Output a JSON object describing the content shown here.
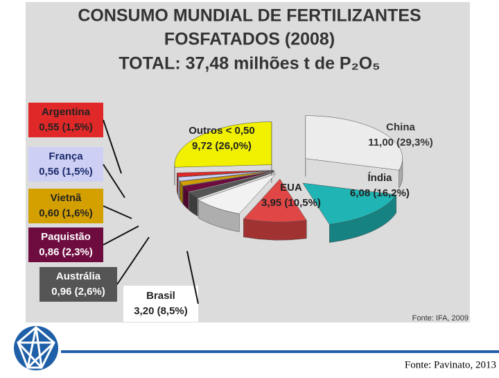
{
  "chart_data": {
    "type": "pie",
    "title": [
      "CONSUMO MUNDIAL DE FERTILIZANTES",
      "FOSFATADOS  (2008)"
    ],
    "subtitle": "TOTAL: 37,48 milhões t de P₂O₅",
    "categories": [
      "China",
      "Índia",
      "EUA",
      "Brasil",
      "Austrália",
      "Paquistão",
      "Vietnã",
      "França",
      "Argentina",
      "Outros < 0,50"
    ],
    "values": [
      11.0,
      6.08,
      3.95,
      3.2,
      0.96,
      0.86,
      0.6,
      0.56,
      0.55,
      9.72
    ],
    "value_labels": [
      "11,00 (29,3%)",
      "6,08 (16,2%)",
      "3,95 (10,5%)",
      "3,20 (8,5%)",
      "0,96 (2,6%)",
      "0,86 (2,3%)",
      "0,60 (1,6%)",
      "0,56 (1,5%)",
      "0,55 (1,5%)",
      "9,72 (26,0%)"
    ],
    "colors": [
      "#ececec",
      "#20b4b4",
      "#e04646",
      "#f2f2f2",
      "#555555",
      "#6e0c40",
      "#d4a000",
      "#cdd0f4",
      "#e02828",
      "#f0f000"
    ],
    "source": "Fonte: IFA, 2009"
  },
  "footer": {
    "source": "Fonte: Pavinato, 2013"
  }
}
